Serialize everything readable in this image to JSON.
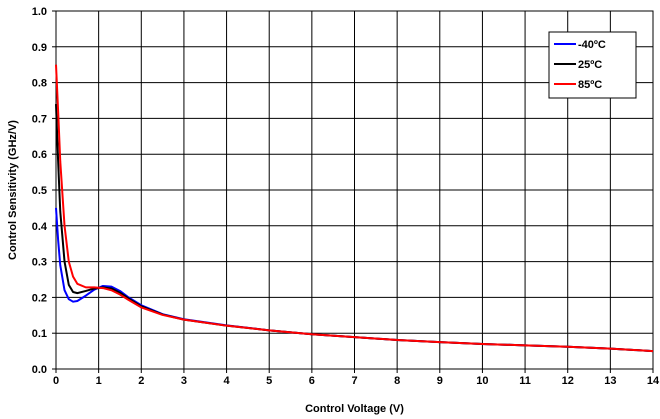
{
  "chart_data": {
    "type": "line",
    "xlabel": "Control Voltage (V)",
    "ylabel": "Control Sensitivity (GHz/V)",
    "xlim": [
      0,
      14
    ],
    "ylim": [
      0,
      1.0
    ],
    "x_ticks": [
      "0",
      "1",
      "2",
      "3",
      "4",
      "5",
      "6",
      "7",
      "8",
      "9",
      "10",
      "11",
      "12",
      "13",
      "14"
    ],
    "y_ticks": [
      "0.0",
      "0.1",
      "0.2",
      "0.3",
      "0.4",
      "0.5",
      "0.6",
      "0.7",
      "0.8",
      "0.9",
      "1.0"
    ],
    "grid": true,
    "legend_position": "top-right",
    "series": [
      {
        "name": "-40ºC",
        "color": "#0000ff",
        "x": [
          0,
          0.05,
          0.1,
          0.2,
          0.3,
          0.4,
          0.5,
          0.7,
          0.9,
          1.1,
          1.3,
          1.5,
          1.7,
          2.0,
          2.5,
          3,
          4,
          5,
          6,
          7,
          8,
          9,
          10,
          11,
          12,
          13,
          14
        ],
        "y": [
          0.45,
          0.36,
          0.29,
          0.22,
          0.195,
          0.188,
          0.19,
          0.205,
          0.222,
          0.232,
          0.23,
          0.218,
          0.2,
          0.178,
          0.153,
          0.139,
          0.122,
          0.108,
          0.097,
          0.089,
          0.081,
          0.075,
          0.07,
          0.066,
          0.062,
          0.057,
          0.05
        ]
      },
      {
        "name": "25ºC",
        "color": "#000000",
        "x": [
          0,
          0.05,
          0.1,
          0.2,
          0.3,
          0.4,
          0.5,
          0.7,
          0.9,
          1.1,
          1.3,
          1.5,
          1.7,
          2.0,
          2.5,
          3,
          4,
          5,
          6,
          7,
          8,
          9,
          10,
          11,
          12,
          13,
          14
        ],
        "y": [
          0.74,
          0.58,
          0.44,
          0.3,
          0.235,
          0.215,
          0.212,
          0.218,
          0.225,
          0.228,
          0.225,
          0.213,
          0.197,
          0.175,
          0.152,
          0.138,
          0.121,
          0.108,
          0.097,
          0.089,
          0.081,
          0.075,
          0.07,
          0.066,
          0.062,
          0.057,
          0.05
        ]
      },
      {
        "name": "85ºC",
        "color": "#ff0000",
        "x": [
          0,
          0.05,
          0.1,
          0.2,
          0.3,
          0.4,
          0.5,
          0.7,
          0.9,
          1.1,
          1.3,
          1.5,
          1.7,
          2.0,
          2.5,
          3,
          4,
          5,
          6,
          7,
          8,
          9,
          10,
          11,
          12,
          13,
          14
        ],
        "y": [
          0.85,
          0.72,
          0.58,
          0.4,
          0.3,
          0.258,
          0.238,
          0.228,
          0.228,
          0.226,
          0.22,
          0.208,
          0.193,
          0.172,
          0.151,
          0.138,
          0.121,
          0.108,
          0.097,
          0.089,
          0.081,
          0.075,
          0.07,
          0.066,
          0.062,
          0.057,
          0.05
        ]
      }
    ]
  }
}
